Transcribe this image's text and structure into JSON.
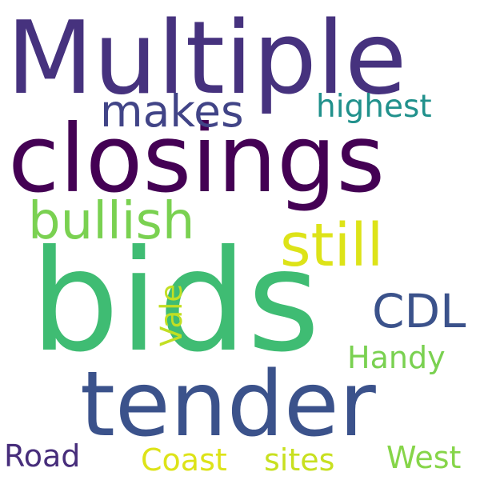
{
  "words": [
    {
      "text": "Multiple",
      "color": "#46327e"
    },
    {
      "text": "closings",
      "color": "#440154"
    },
    {
      "text": "bids",
      "color": "#3fbc73"
    },
    {
      "text": "tender",
      "color": "#3b528b"
    },
    {
      "text": "makes",
      "color": "#414487"
    },
    {
      "text": "highest",
      "color": "#21918c"
    },
    {
      "text": "bullish",
      "color": "#7ad151"
    },
    {
      "text": "still",
      "color": "#dde318"
    },
    {
      "text": "CDL",
      "color": "#3b528b"
    },
    {
      "text": "Vale",
      "color": "#c2df23"
    },
    {
      "text": "Handy",
      "color": "#7ad151"
    },
    {
      "text": "Road",
      "color": "#472d7b"
    },
    {
      "text": "Coast",
      "color": "#dde318"
    },
    {
      "text": "sites",
      "color": "#c8e020"
    },
    {
      "text": "West",
      "color": "#86d549"
    }
  ]
}
